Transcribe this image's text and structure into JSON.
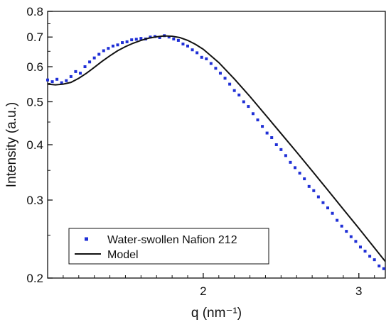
{
  "chart_data": {
    "type": "scatter",
    "xlabel": "q (nm⁻¹)",
    "ylabel": "Intensity (a.u.)",
    "yscale": "log",
    "xlim": [
      1.0,
      3.17
    ],
    "ylim": [
      0.2,
      0.8
    ],
    "x_ticks": [
      2,
      3
    ],
    "y_ticks": [
      0.2,
      0.3,
      0.4,
      0.5,
      0.6,
      0.7,
      0.8
    ],
    "y_tick_labels": [
      "0.2",
      "0.3",
      "0.4",
      "0.5",
      "0.6",
      "0.7",
      "0.8"
    ],
    "x_tick_labels": [
      "2",
      "3"
    ],
    "grid": false,
    "legend_position": "bottom-left",
    "series": [
      {
        "name": "Water-swollen Nafion 212",
        "kind": "scatter",
        "marker": "square",
        "color": "#1f2fd6",
        "x": [
          1.0,
          1.03,
          1.06,
          1.09,
          1.12,
          1.15,
          1.18,
          1.21,
          1.24,
          1.27,
          1.3,
          1.33,
          1.36,
          1.39,
          1.42,
          1.45,
          1.48,
          1.51,
          1.54,
          1.57,
          1.6,
          1.63,
          1.66,
          1.69,
          1.72,
          1.75,
          1.78,
          1.81,
          1.84,
          1.87,
          1.9,
          1.93,
          1.96,
          1.99,
          2.02,
          2.05,
          2.08,
          2.11,
          2.14,
          2.17,
          2.2,
          2.23,
          2.26,
          2.29,
          2.32,
          2.35,
          2.38,
          2.41,
          2.44,
          2.47,
          2.5,
          2.53,
          2.56,
          2.59,
          2.62,
          2.65,
          2.68,
          2.71,
          2.74,
          2.77,
          2.8,
          2.83,
          2.86,
          2.89,
          2.92,
          2.95,
          2.98,
          3.01,
          3.04,
          3.07,
          3.1,
          3.13,
          3.16
        ],
        "y": [
          0.56,
          0.555,
          0.562,
          0.552,
          0.558,
          0.57,
          0.585,
          0.58,
          0.6,
          0.615,
          0.628,
          0.64,
          0.652,
          0.66,
          0.668,
          0.672,
          0.68,
          0.683,
          0.69,
          0.692,
          0.695,
          0.693,
          0.7,
          0.702,
          0.698,
          0.705,
          0.7,
          0.693,
          0.688,
          0.675,
          0.668,
          0.655,
          0.645,
          0.63,
          0.625,
          0.61,
          0.595,
          0.58,
          0.565,
          0.548,
          0.53,
          0.518,
          0.5,
          0.488,
          0.47,
          0.455,
          0.44,
          0.425,
          0.415,
          0.4,
          0.39,
          0.378,
          0.365,
          0.355,
          0.345,
          0.335,
          0.322,
          0.315,
          0.305,
          0.296,
          0.288,
          0.28,
          0.27,
          0.262,
          0.255,
          0.248,
          0.242,
          0.235,
          0.23,
          0.224,
          0.22,
          0.213,
          0.21
        ]
      },
      {
        "name": "Model",
        "kind": "line",
        "color": "#111111",
        "x": [
          1.0,
          1.05,
          1.1,
          1.15,
          1.2,
          1.25,
          1.3,
          1.35,
          1.4,
          1.45,
          1.5,
          1.55,
          1.6,
          1.65,
          1.7,
          1.75,
          1.8,
          1.85,
          1.9,
          1.95,
          2.0,
          2.1,
          2.2,
          2.3,
          2.4,
          2.5,
          2.6,
          2.7,
          2.8,
          2.9,
          3.0,
          3.1,
          3.17
        ],
        "y": [
          0.548,
          0.546,
          0.548,
          0.553,
          0.565,
          0.58,
          0.598,
          0.617,
          0.635,
          0.652,
          0.666,
          0.678,
          0.688,
          0.696,
          0.701,
          0.704,
          0.703,
          0.698,
          0.688,
          0.674,
          0.657,
          0.613,
          0.563,
          0.514,
          0.467,
          0.424,
          0.385,
          0.349,
          0.316,
          0.286,
          0.259,
          0.234,
          0.218
        ]
      }
    ]
  }
}
